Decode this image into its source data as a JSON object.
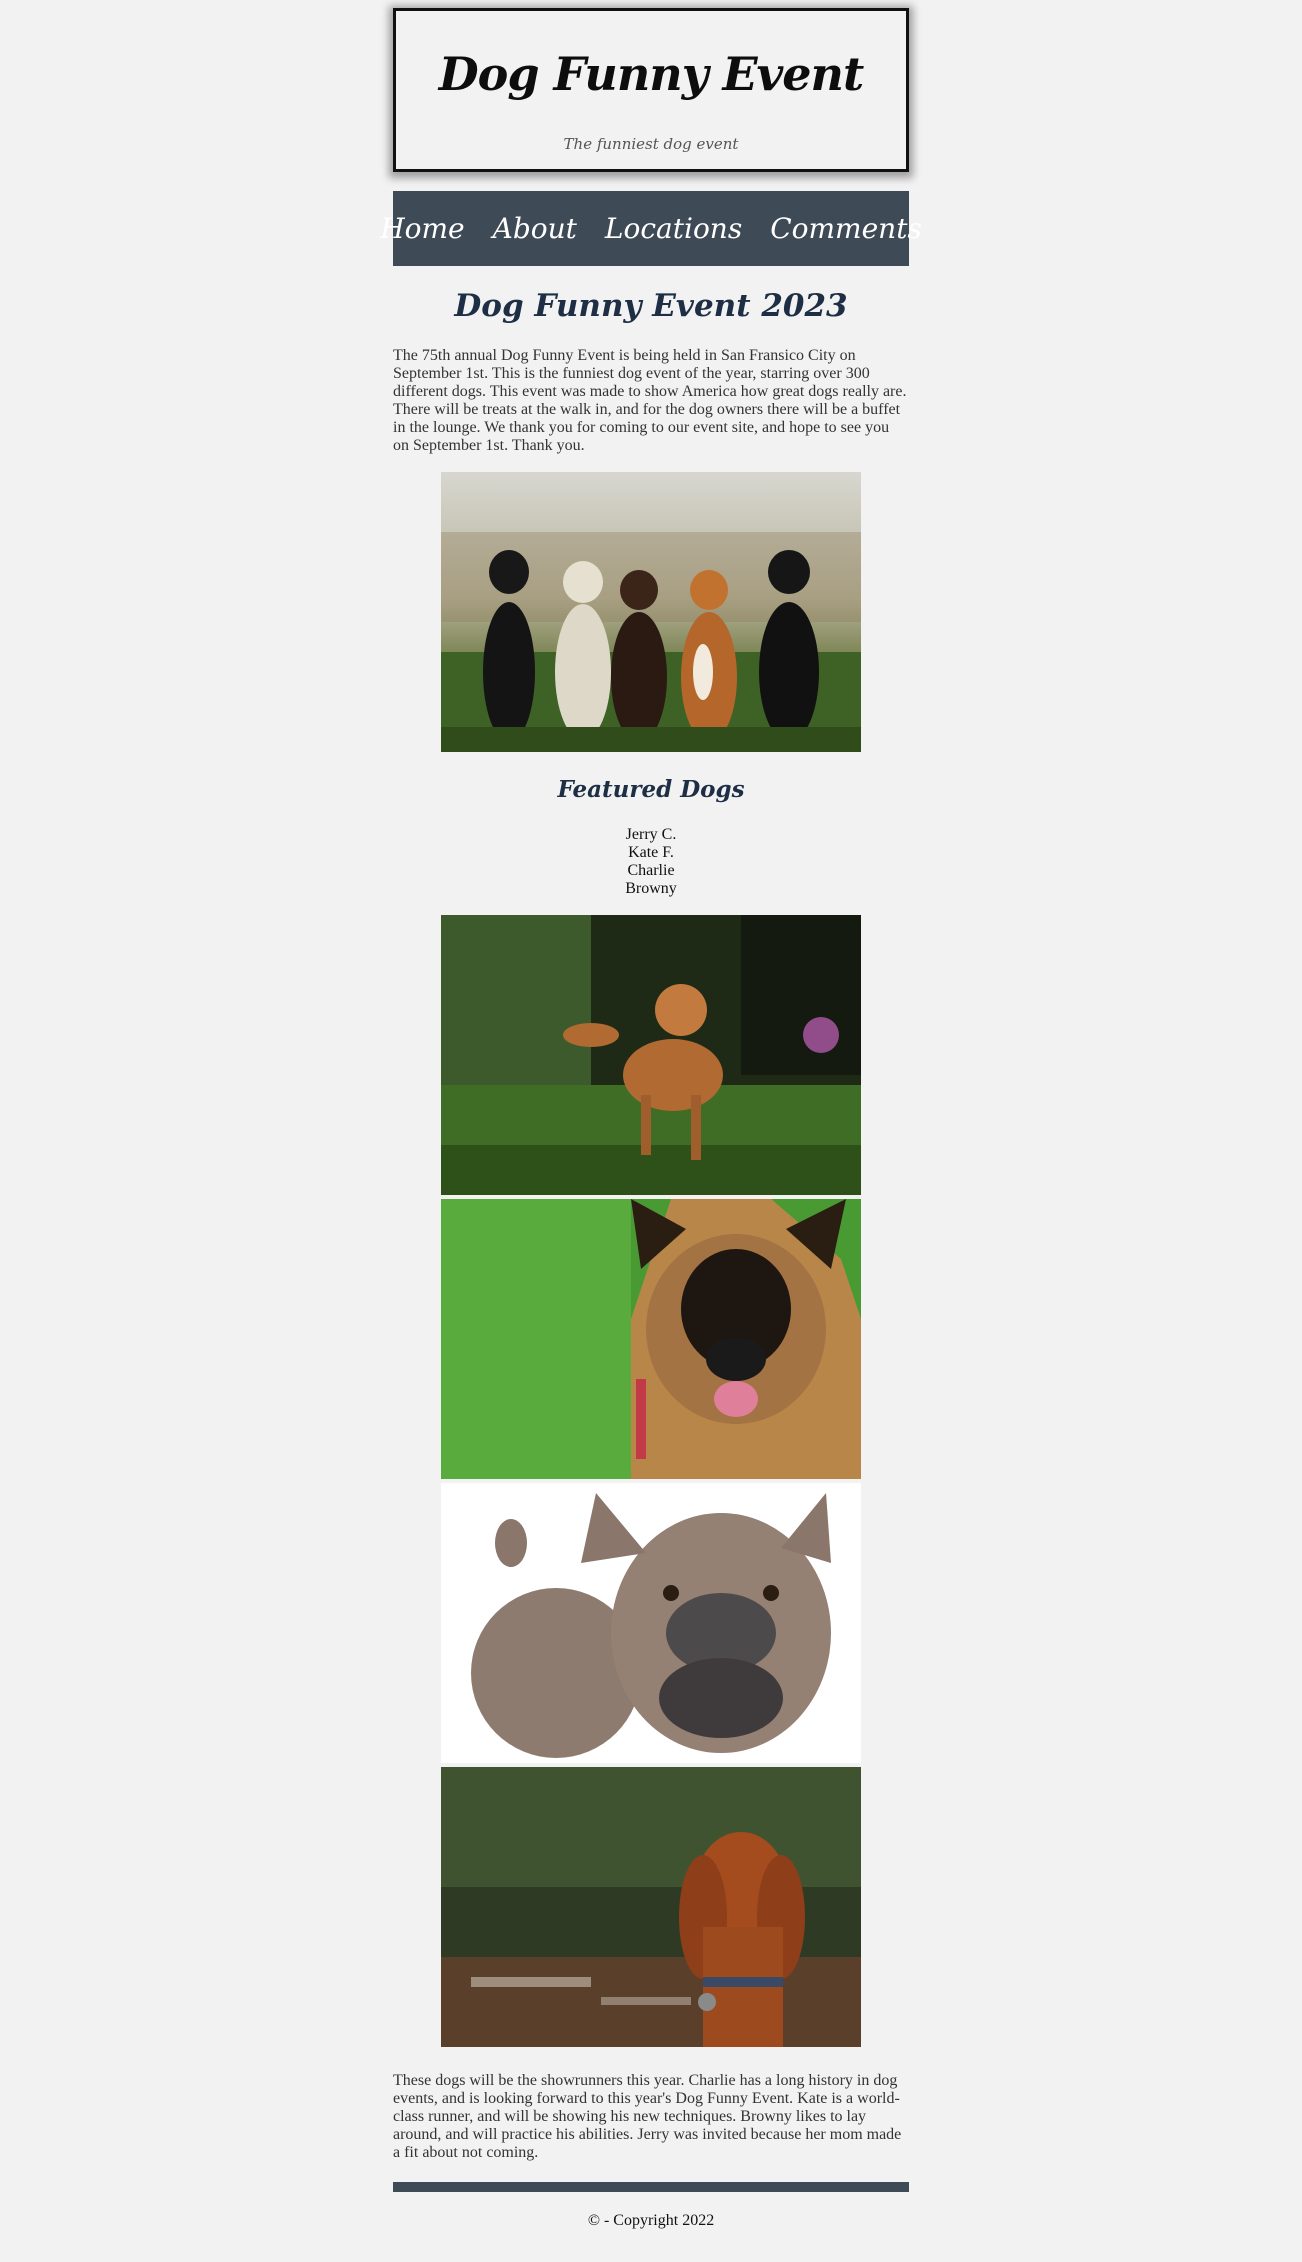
{
  "header": {
    "title": "Dog Funny Event",
    "tagline": "The funniest dog event"
  },
  "nav": {
    "items": [
      {
        "label": "Home"
      },
      {
        "label": "About"
      },
      {
        "label": "Locations"
      },
      {
        "label": "Comments"
      }
    ]
  },
  "main": {
    "heading": "Dog Funny Event 2023",
    "intro": "The 75th annual Dog Funny Event is being held in San Fransico City on September 1st. This is the funniest dog event of the year, starring over 300 different dogs. This event was made to show America how great dogs really are. There will be treats at the walk in, and for the dog owners there will be a buffet in the lounge. We thank you for coming to our event site, and hope to see you on September 1st. Thank you.",
    "featured_heading": "Featured Dogs",
    "featured_dogs": [
      "Jerry C.",
      "Kate F.",
      "Charlie",
      "Browny"
    ],
    "closing": "These dogs will be the showrunners this year. Charlie has a long history in dog events, and is looking forward to this year's Dog Funny Event. Kate is a world-class runner, and will be showing his new techniques. Browny likes to lay around, and will practice his abilities. Jerry was invited because her mom made a fit about not coming."
  },
  "footer": {
    "copyright": "© - Copyright 2022"
  },
  "colors": {
    "page_background": "#f2f2f2",
    "nav_background": "#3f4a57",
    "heading_color": "#1e2e45"
  }
}
